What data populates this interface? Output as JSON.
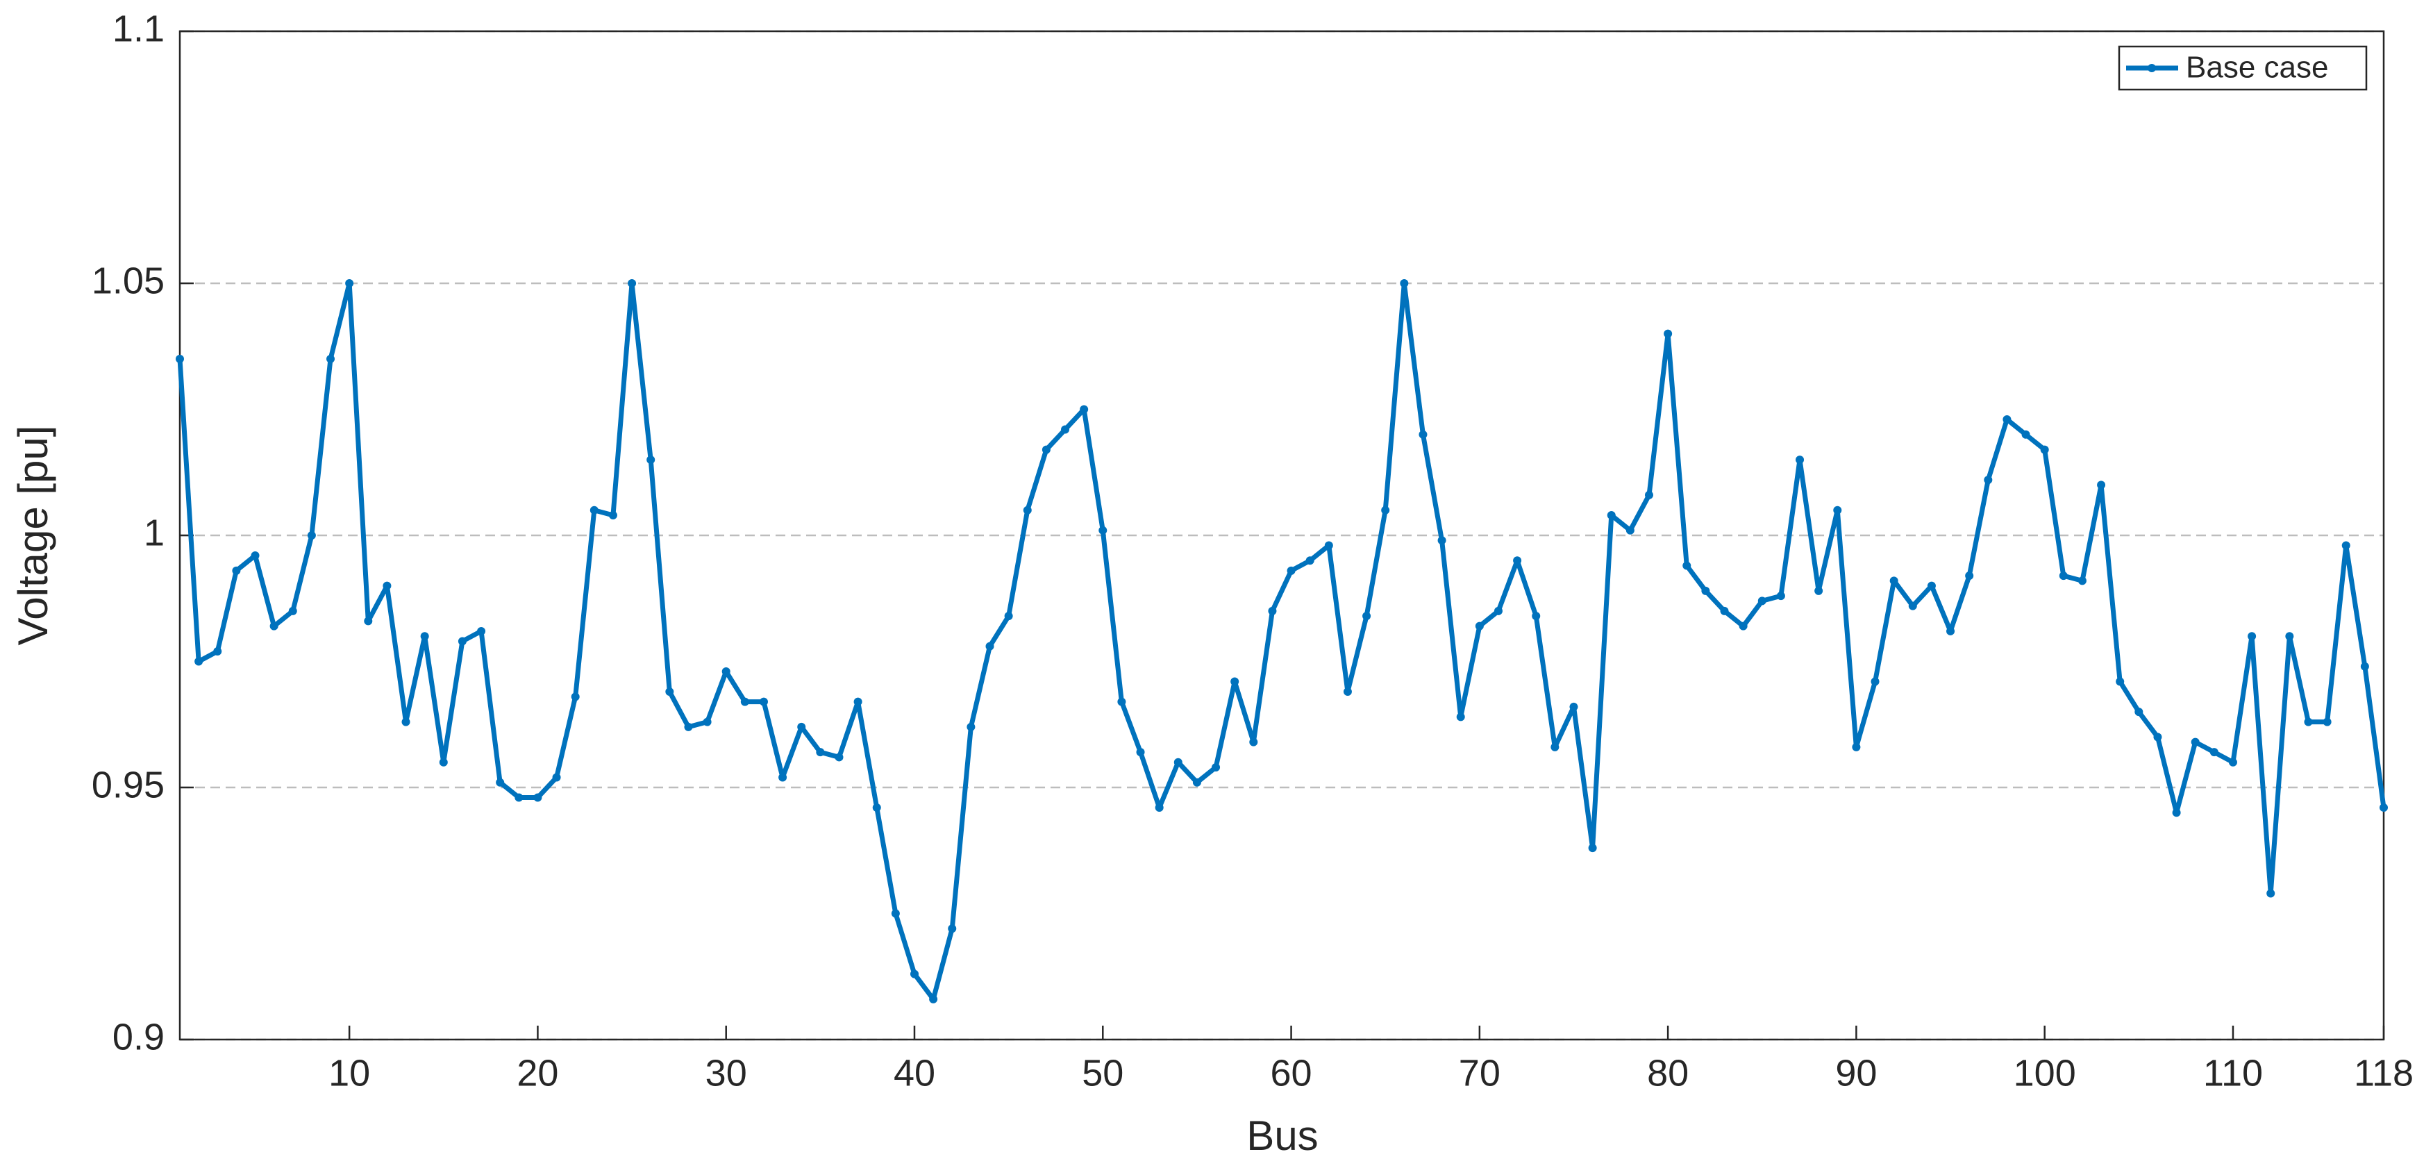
{
  "chart_data": {
    "type": "line",
    "x_label": "Bus",
    "y_label": "Voltage [pu]",
    "x": [
      1,
      2,
      3,
      4,
      5,
      6,
      7,
      8,
      9,
      10,
      11,
      12,
      13,
      14,
      15,
      16,
      17,
      18,
      19,
      20,
      21,
      22,
      23,
      24,
      25,
      26,
      27,
      28,
      29,
      30,
      31,
      32,
      33,
      34,
      35,
      36,
      37,
      38,
      39,
      40,
      41,
      42,
      43,
      44,
      45,
      46,
      47,
      48,
      49,
      50,
      51,
      52,
      53,
      54,
      55,
      56,
      57,
      58,
      59,
      60,
      61,
      62,
      63,
      64,
      65,
      66,
      67,
      68,
      69,
      70,
      71,
      72,
      73,
      74,
      75,
      76,
      77,
      78,
      79,
      80,
      81,
      82,
      83,
      84,
      85,
      86,
      87,
      88,
      89,
      90,
      91,
      92,
      93,
      94,
      95,
      96,
      97,
      98,
      99,
      100,
      101,
      102,
      103,
      104,
      105,
      106,
      107,
      108,
      109,
      110,
      111,
      112,
      113,
      114,
      115,
      116,
      117,
      118
    ],
    "series": [
      {
        "name": "Base case",
        "color": "#0072bd",
        "values": [
          1.035,
          0.975,
          0.977,
          0.993,
          0.996,
          0.982,
          0.985,
          1.0,
          1.035,
          1.05,
          0.983,
          0.99,
          0.963,
          0.98,
          0.955,
          0.979,
          0.981,
          0.951,
          0.948,
          0.948,
          0.952,
          0.968,
          1.005,
          1.004,
          1.05,
          1.015,
          0.969,
          0.962,
          0.963,
          0.973,
          0.967,
          0.967,
          0.952,
          0.962,
          0.957,
          0.956,
          0.967,
          0.946,
          0.925,
          0.913,
          0.908,
          0.922,
          0.962,
          0.978,
          0.984,
          1.005,
          1.017,
          1.021,
          1.025,
          1.001,
          0.967,
          0.957,
          0.946,
          0.955,
          0.951,
          0.954,
          0.971,
          0.959,
          0.985,
          0.993,
          0.995,
          0.998,
          0.969,
          0.984,
          1.005,
          1.05,
          1.02,
          0.999,
          0.964,
          0.982,
          0.985,
          0.995,
          0.984,
          0.958,
          0.966,
          0.938,
          1.004,
          1.001,
          1.008,
          1.04,
          0.994,
          0.989,
          0.985,
          0.982,
          0.987,
          0.988,
          1.015,
          0.989,
          1.005,
          0.958,
          0.971,
          0.991,
          0.986,
          0.99,
          0.981,
          0.992,
          1.011,
          1.023,
          1.02,
          1.017,
          0.992,
          0.991,
          1.01,
          0.971,
          0.965,
          0.96,
          0.945,
          0.959,
          0.957,
          0.955,
          0.98,
          0.929,
          0.98,
          0.963,
          0.963,
          0.998,
          0.974,
          0.946
        ]
      }
    ],
    "xlim": [
      1,
      118
    ],
    "xticks": [
      10,
      20,
      30,
      40,
      50,
      60,
      70,
      80,
      90,
      100,
      110,
      118
    ],
    "ylim": [
      0.9,
      1.1
    ],
    "yticks": [
      0.9,
      0.95,
      1,
      1.05,
      1.1
    ],
    "grid": true,
    "legend": "upper right"
  }
}
